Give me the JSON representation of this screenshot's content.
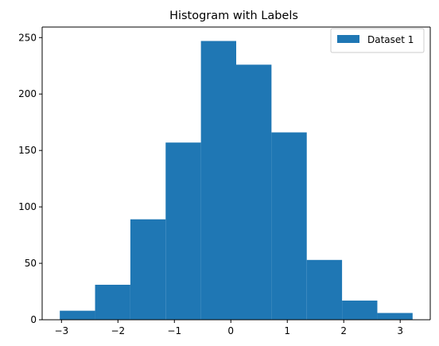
{
  "chart_data": {
    "type": "bar",
    "subtype": "histogram",
    "title": "Histogram with Labels",
    "xlabel": "",
    "ylabel": "",
    "bin_edges": [
      -3.03,
      -2.405,
      -1.78,
      -1.155,
      -0.53,
      0.095,
      0.72,
      1.345,
      1.97,
      2.595,
      3.22
    ],
    "series": [
      {
        "name": "Dataset 1",
        "color": "#1f77b4",
        "values": [
          8,
          31,
          89,
          157,
          247,
          226,
          166,
          53,
          17,
          6
        ]
      }
    ],
    "xlim": [
      -3.3425,
      3.5325
    ],
    "ylim": [
      0,
      259.35
    ],
    "xticks": [
      -3,
      -2,
      -1,
      0,
      1,
      2,
      3
    ],
    "xtick_labels": [
      "−3",
      "−2",
      "−1",
      "0",
      "1",
      "2",
      "3"
    ],
    "yticks": [
      0,
      50,
      100,
      150,
      200,
      250
    ],
    "ytick_labels": [
      "0",
      "50",
      "100",
      "150",
      "200",
      "250"
    ],
    "grid": false,
    "legend_position": "upper right"
  }
}
